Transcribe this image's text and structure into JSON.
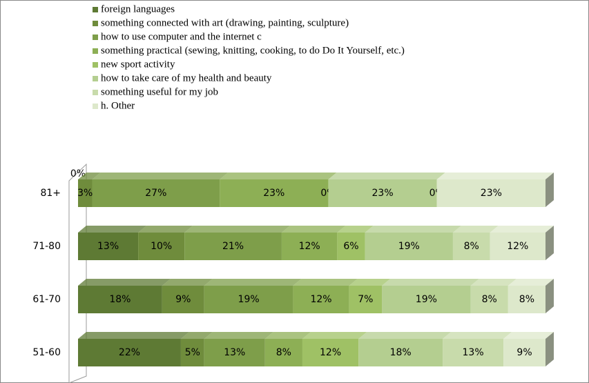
{
  "chart_data": {
    "type": "bar",
    "orientation": "horizontal",
    "stacking": "percent",
    "categories": [
      "81+",
      "71-80",
      "61-70",
      "51-60"
    ],
    "series": [
      {
        "name": "foreign languages",
        "color": "#5e7a34",
        "values": [
          0,
          13,
          18,
          22
        ],
        "value_labels": [
          "0%",
          "13%",
          "18%",
          "22%"
        ]
      },
      {
        "name": "something connected with art (drawing, painting, sculpture)",
        "color": "#6f8c3c",
        "values": [
          3,
          10,
          9,
          5
        ],
        "value_labels": [
          "3%",
          "10%",
          "9%",
          "5%"
        ]
      },
      {
        "name": "how to use computer and the internet c",
        "color": "#7e9e4a",
        "values": [
          27,
          21,
          19,
          13
        ],
        "value_labels": [
          "27%",
          "21%",
          "19%",
          "13%"
        ]
      },
      {
        "name": "something practical (sewing, knitting, cooking, to do Do It Yourself, etc.)",
        "color": "#8daf55",
        "values": [
          23,
          12,
          12,
          8
        ],
        "value_labels": [
          "23%",
          "12%",
          "12%",
          "8%"
        ]
      },
      {
        "name": "new sport activity",
        "color": "#9fc165",
        "values": [
          0,
          6,
          7,
          12
        ],
        "value_labels": [
          "0%",
          "6%",
          "7%",
          "12%"
        ]
      },
      {
        "name": "how to take care of my health and beauty",
        "color": "#b4ce90",
        "values": [
          23,
          19,
          19,
          18
        ],
        "value_labels": [
          "23%",
          "19%",
          "19%",
          "18%"
        ]
      },
      {
        "name": "something useful for my job",
        "color": "#c8dbab",
        "values": [
          0,
          8,
          8,
          13
        ],
        "value_labels": [
          "0%",
          "8%",
          "8%",
          "13%"
        ]
      },
      {
        "name": "h. Other",
        "color": "#dde8cb",
        "values": [
          23,
          12,
          8,
          9
        ],
        "value_labels": [
          "23%",
          "12%",
          "8%",
          "9%"
        ]
      }
    ],
    "legend": "top"
  }
}
